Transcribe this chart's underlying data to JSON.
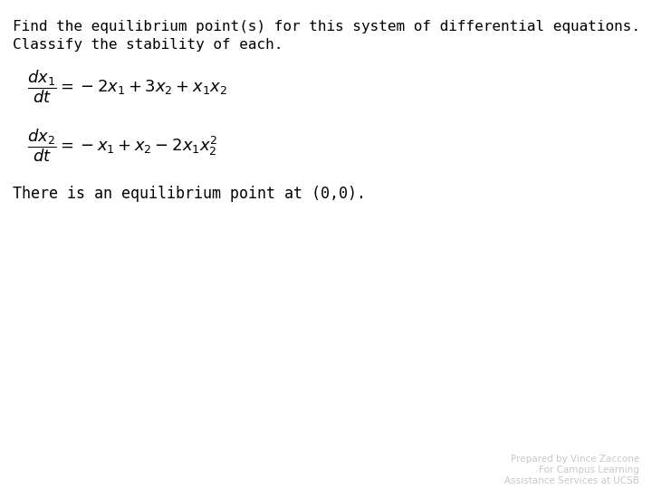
{
  "title_line1": "Find the equilibrium point(s) for this system of differential equations.",
  "title_line2": "Classify the stability of each.",
  "eq1": "\\frac{dx_1}{dt} = -2x_1 + 3x_2 + x_1x_2",
  "eq2": "\\frac{dx_2}{dt} = -x_1 + x_2 - 2x_1x_2^2",
  "conclusion": "There is an equilibrium point at (0,0).",
  "footer_line1": "Prepared by Vince Zaccone",
  "footer_line2": "For Campus Learning",
  "footer_line3": "Assistance Services at UCSB",
  "bg_color": "#ffffff",
  "text_color": "#000000",
  "footer_color": "#c8c8c8",
  "title_fontsize": 11.5,
  "eq_fontsize": 13,
  "conclusion_fontsize": 12,
  "footer_fontsize": 7.5
}
